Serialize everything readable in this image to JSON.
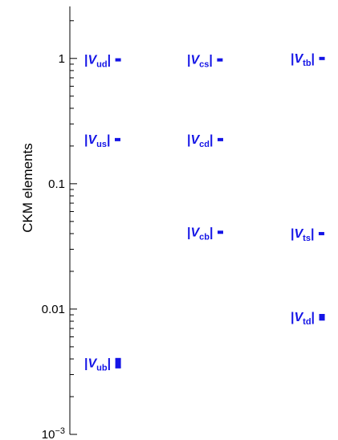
{
  "chart_data": {
    "type": "scatter",
    "ylabel": "CKM elements",
    "yscale": "log",
    "ylim": [
      0.001,
      2.6
    ],
    "grid": false,
    "y_ticks": [
      {
        "value": 1,
        "label": "1"
      },
      {
        "value": 0.1,
        "label": "0.1"
      },
      {
        "value": 0.01,
        "label": "0.01"
      },
      {
        "value": 0.001,
        "label_base": "10",
        "label_exp": "−3"
      }
    ],
    "columns": 3,
    "points": [
      {
        "name": "|Vud|",
        "pre": "|V",
        "sub": "ud",
        "post": "|",
        "column": 1,
        "value": 0.974,
        "err": 0.0002
      },
      {
        "name": "|Vus|",
        "pre": "|V",
        "sub": "us",
        "post": "|",
        "column": 1,
        "value": 0.225,
        "err": 0.0007
      },
      {
        "name": "|Vub|",
        "pre": "|V",
        "sub": "ub",
        "post": "|",
        "column": 1,
        "value": 0.0037,
        "err": 0.0003
      },
      {
        "name": "|Vcs|",
        "pre": "|V",
        "sub": "cs",
        "post": "|",
        "column": 2,
        "value": 0.973,
        "err": 0.0002
      },
      {
        "name": "|Vcd|",
        "pre": "|V",
        "sub": "cd",
        "post": "|",
        "column": 2,
        "value": 0.225,
        "err": 0.0007
      },
      {
        "name": "|Vcb|",
        "pre": "|V",
        "sub": "cb",
        "post": "|",
        "column": 2,
        "value": 0.041,
        "err": 0.0011
      },
      {
        "name": "|Vtb|",
        "pre": "|V",
        "sub": "tb",
        "post": "|",
        "column": 3,
        "value": 0.999,
        "err": 0.0001
      },
      {
        "name": "|Vts|",
        "pre": "|V",
        "sub": "ts",
        "post": "|",
        "column": 3,
        "value": 0.04,
        "err": 0.0011
      },
      {
        "name": "|Vtd|",
        "pre": "|V",
        "sub": "td",
        "post": "|",
        "column": 3,
        "value": 0.0086,
        "err": 0.0004
      }
    ],
    "colors": {
      "points": "#1414e6",
      "axis": "#000000"
    }
  }
}
